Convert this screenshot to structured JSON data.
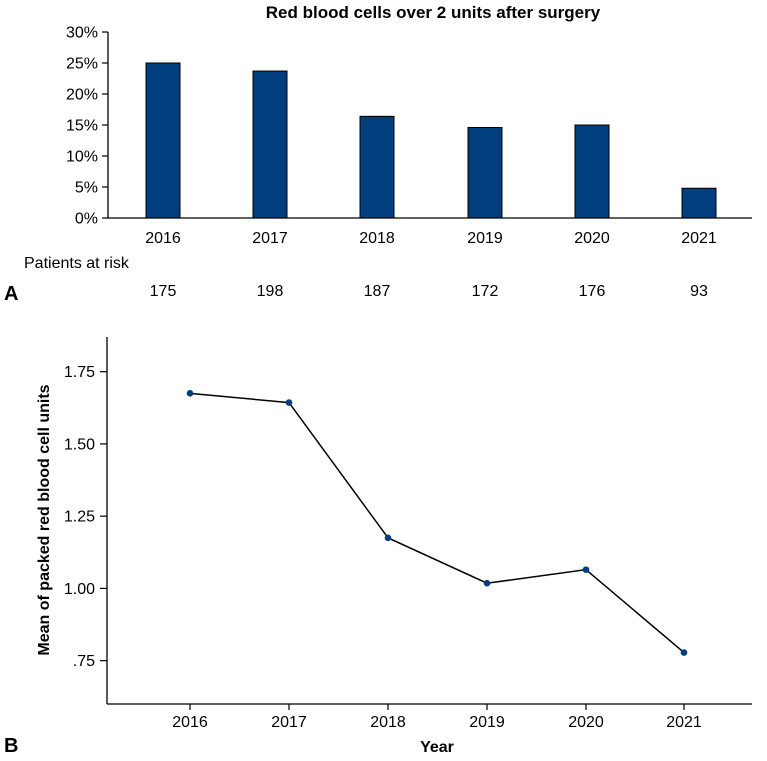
{
  "chart_data": [
    {
      "panel": "A",
      "type": "bar",
      "title": "Red blood cells over 2 units after surgery",
      "categories": [
        "2016",
        "2017",
        "2018",
        "2019",
        "2020",
        "2021"
      ],
      "values": [
        25.0,
        23.7,
        16.4,
        14.6,
        15.0,
        4.8
      ],
      "ylim": [
        0,
        30
      ],
      "yticks": [
        0,
        5,
        10,
        15,
        20,
        25,
        30
      ],
      "ytick_labels": [
        "0%",
        "5%",
        "10%",
        "15%",
        "20%",
        "25%",
        "30%"
      ],
      "bar_color": "#003e7e",
      "grid": false,
      "risk_table": {
        "label": "Patients at risk",
        "values": [
          "175",
          "198",
          "187",
          "172",
          "176",
          "93"
        ]
      }
    },
    {
      "panel": "B",
      "type": "line",
      "x": [
        "2016",
        "2017",
        "2018",
        "2019",
        "2020",
        "2021"
      ],
      "values": [
        1.675,
        1.643,
        1.175,
        1.018,
        1.065,
        0.778
      ],
      "xlabel": "Year",
      "ylabel": "Mean of packed red blood cell units",
      "ylim": [
        0.6,
        1.87
      ],
      "yticks": [
        0.75,
        1.0,
        1.25,
        1.5,
        1.75
      ],
      "ytick_labels": [
        ".75",
        "1.00",
        "1.25",
        "1.50",
        "1.75"
      ],
      "marker_color": "#003e7e",
      "line_color": "#000000",
      "grid": false
    }
  ]
}
